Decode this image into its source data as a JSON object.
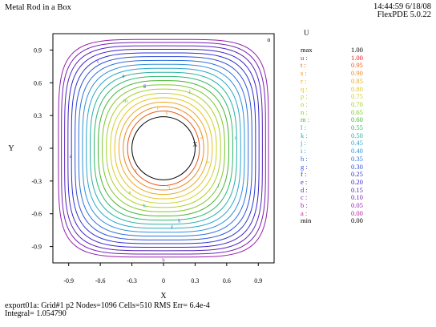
{
  "header": {
    "title": "Metal Rod in a Box",
    "time": "14:44:59 6/18/08",
    "version": "FlexPDE 5.0.22"
  },
  "footer": {
    "line1": "export01a:  Grid#1  p2  Nodes=1096 Cells=510 RMS Err= 6.4e-4",
    "line2": "Integral=  1.054790"
  },
  "colors": {
    "frame": "#000000",
    "rod_hole": "#ffffff"
  },
  "chart_data": {
    "type": "contour",
    "xlabel": "X",
    "ylabel": "Y",
    "xlim": [
      -1.05,
      1.05
    ],
    "ylim": [
      -1.05,
      1.05
    ],
    "xticks": [
      -0.9,
      -0.6,
      -0.3,
      0,
      0.3,
      0.6,
      0.9
    ],
    "xtick_labels": [
      "-0.9",
      "-0.6",
      "-0.3",
      "0",
      "0.3",
      "0.6",
      "0.9"
    ],
    "yticks": [
      0.9,
      0.6,
      0.3,
      0,
      -0.3,
      -0.6,
      -0.9
    ],
    "ytick_labels": [
      "0.9",
      "0.6",
      "0.3",
      "0",
      "-0.3",
      "-0.6",
      "-0.9"
    ],
    "rod_radius": 0.3,
    "legend_title": "U",
    "legend_max": {
      "label": "max",
      "value": "1.00"
    },
    "legend_min": {
      "label": "min",
      "value": "0.00"
    },
    "levels": [
      {
        "letter": "u",
        "value": 1.0,
        "label": "1.00",
        "color": "#e8121a"
      },
      {
        "letter": "t",
        "value": 0.95,
        "label": "0.95",
        "color": "#e8561a"
      },
      {
        "letter": "s",
        "value": 0.9,
        "label": "0.90",
        "color": "#eb8a1e"
      },
      {
        "letter": "r",
        "value": 0.85,
        "label": "0.85",
        "color": "#e9a924"
      },
      {
        "letter": "q",
        "value": 0.8,
        "label": "0.80",
        "color": "#e3c126"
      },
      {
        "letter": "p",
        "value": 0.75,
        "label": "0.75",
        "color": "#cfd22b"
      },
      {
        "letter": "o",
        "value": 0.7,
        "label": "0.70",
        "color": "#a8cf2a"
      },
      {
        "letter": "n",
        "value": 0.65,
        "label": "0.65",
        "color": "#7cc62c"
      },
      {
        "letter": "m",
        "value": 0.6,
        "label": "0.60",
        "color": "#43b52f"
      },
      {
        "letter": "l",
        "value": 0.55,
        "label": "0.55",
        "color": "#2fb66f"
      },
      {
        "letter": "k",
        "value": 0.5,
        "label": "0.50",
        "color": "#27b0a4"
      },
      {
        "letter": "j",
        "value": 0.45,
        "label": "0.45",
        "color": "#2aa6c8"
      },
      {
        "letter": "i",
        "value": 0.4,
        "label": "0.40",
        "color": "#2f8fd8"
      },
      {
        "letter": "h",
        "value": 0.35,
        "label": "0.35",
        "color": "#2f6fdc"
      },
      {
        "letter": "g",
        "value": 0.3,
        "label": "0.30",
        "color": "#2d4ed8"
      },
      {
        "letter": "f",
        "value": 0.25,
        "label": "0.25",
        "color": "#2b32cf"
      },
      {
        "letter": "e",
        "value": 0.2,
        "label": "0.20",
        "color": "#3b23c4"
      },
      {
        "letter": "d",
        "value": 0.15,
        "label": "0.15",
        "color": "#5522bc"
      },
      {
        "letter": "c",
        "value": 0.1,
        "label": "0.10",
        "color": "#7520b4"
      },
      {
        "letter": "b",
        "value": 0.05,
        "label": "0.05",
        "color": "#951fae"
      },
      {
        "letter": "a",
        "value": 0.0,
        "label": "0.00",
        "color": "#b51ea8"
      }
    ],
    "contours": [
      {
        "letter": "b",
        "level": 0.05,
        "label_at": [
          0,
          -1.02
        ]
      },
      {
        "letter": "c",
        "level": 0.1,
        "label_at": [
          -0.62,
          0.8
        ]
      },
      {
        "letter": "d",
        "level": 0.15,
        "label_at": [
          -0.88,
          -0.07
        ]
      },
      {
        "letter": "e",
        "level": 0.2,
        "label_at": [
          -0.38,
          0.67
        ]
      },
      {
        "letter": "f",
        "level": 0.25,
        "label_at": [
          0.08,
          -0.72
        ]
      },
      {
        "letter": "g",
        "level": 0.3,
        "label_at": [
          -0.18,
          0.58
        ]
      },
      {
        "letter": "h",
        "level": 0.35,
        "label_at": [
          0.15,
          -0.66
        ]
      },
      {
        "letter": "i",
        "level": 0.4,
        "label_at": [
          0.68,
          0.1
        ]
      },
      {
        "letter": "j",
        "level": 0.45,
        "label_at": [
          0.25,
          0.53
        ]
      },
      {
        "letter": "k",
        "level": 0.5,
        "label_at": [
          -0.18,
          -0.52
        ]
      },
      {
        "letter": "l",
        "level": 0.55,
        "label_at": [
          0.52,
          -0.34
        ]
      },
      {
        "letter": "m",
        "level": 0.6,
        "label_at": [
          -0.36,
          0.44
        ]
      },
      {
        "letter": "n",
        "level": 0.65,
        "label_at": [
          -0.32,
          -0.4
        ]
      },
      {
        "letter": "o",
        "level": 0.7,
        "label_at": [
          0.42,
          -0.12
        ]
      },
      {
        "letter": "p",
        "level": 0.75,
        "label_at": [
          -0.05,
          0.38
        ]
      },
      {
        "letter": "q",
        "level": 0.8,
        "label_at": [
          0.05,
          -0.34
        ]
      },
      {
        "letter": "r",
        "level": 0.85,
        "label_at": [
          0.36,
          0.1
        ]
      },
      {
        "letter": "s",
        "level": 0.9,
        "label_at": [
          0.03,
          0.33
        ]
      },
      {
        "letter": "t",
        "level": 0.95,
        "label_at": [
          -0.26,
          -0.2
        ]
      }
    ],
    "markers": [
      {
        "label": "X",
        "x": 0.3,
        "y": 0.04
      },
      {
        "label": "o",
        "x": 1.0,
        "y": 1.0
      }
    ]
  }
}
